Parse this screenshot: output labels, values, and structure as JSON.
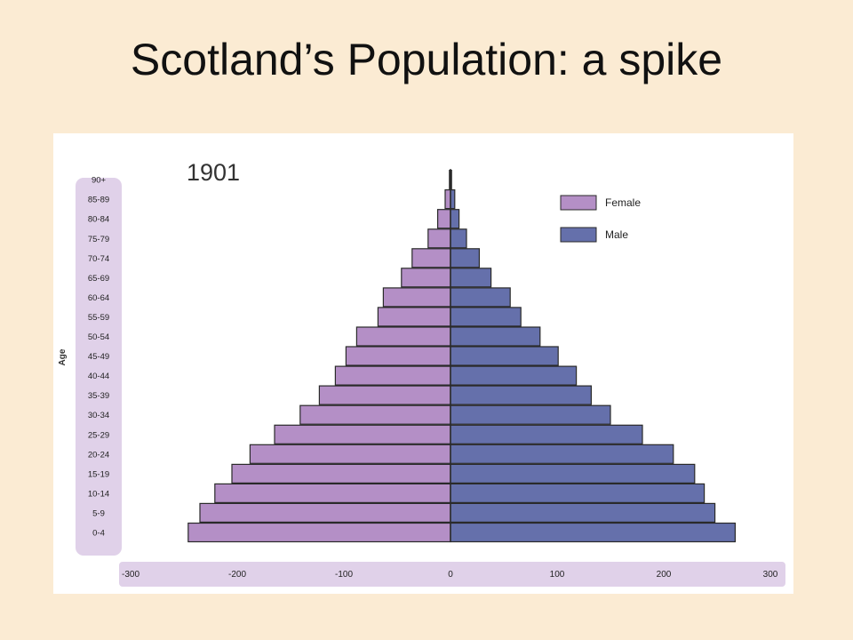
{
  "slide": {
    "title": "Scotland’s Population: a spike"
  },
  "chart_data": {
    "type": "bar",
    "orientation": "horizontal",
    "subtype": "population-pyramid",
    "title": "1901",
    "ylabel": "Age",
    "xlabel": "",
    "xlim": [
      -300,
      300
    ],
    "xticks": [
      -300,
      -200,
      -100,
      0,
      100,
      200,
      300
    ],
    "categories": [
      "0-4",
      "5-9",
      "10-14",
      "15-19",
      "20-24",
      "25-29",
      "30-34",
      "35-39",
      "40-44",
      "45-49",
      "50-54",
      "55-59",
      "60-64",
      "65-69",
      "70-74",
      "75-79",
      "80-84",
      "85-89",
      "90+"
    ],
    "series": [
      {
        "name": "Female",
        "color": "#b48fc6",
        "side": "left",
        "values": [
          246,
          235,
          221,
          205,
          188,
          165,
          141,
          123,
          108,
          98,
          88,
          68,
          63,
          46,
          36,
          21,
          12,
          5,
          1
        ]
      },
      {
        "name": "Male",
        "color": "#6570ab",
        "side": "right",
        "values": [
          267,
          248,
          238,
          229,
          209,
          180,
          150,
          132,
          118,
          101,
          84,
          66,
          56,
          38,
          27,
          15,
          8,
          4,
          1
        ]
      }
    ],
    "legend": "top-right",
    "grid": false
  }
}
